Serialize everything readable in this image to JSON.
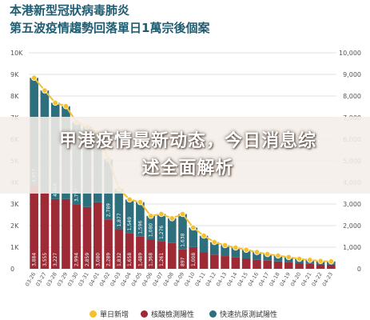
{
  "title_line1": "本港新型冠狀病毒肺炎",
  "title_line2": "第五波疫情趨勢回落單日1萬宗後個案",
  "overlay_text": "甲港疫情最新动态，今日消息综述全面解析",
  "colors": {
    "title": "#1f5d72",
    "total": "#f5c02f",
    "pcr": "#9e2a36",
    "rat": "#2d6f7d",
    "grid": "#d6d6d6"
  },
  "chart_data": {
    "type": "bar",
    "stacked": true,
    "left_axis_ticks": [
      "0",
      "1K",
      "2K",
      "3K",
      "4K",
      "5K",
      "6K",
      "7K",
      "8K",
      "9K",
      "10K"
    ],
    "right_axis_ticks": [
      "0",
      "1,000",
      "2,000",
      "3,000",
      "4,000",
      "5,000",
      "6,000",
      "7,000",
      "8,000",
      "9,000",
      "10,000"
    ],
    "ylim": [
      0,
      10000
    ],
    "categories": [
      "03-26",
      "03-27",
      "03-28",
      "03-29",
      "03-30",
      "03-31",
      "04-01",
      "04-02",
      "04-03",
      "04-04",
      "04-05",
      "04-06",
      "04-07",
      "04-08",
      "04-09",
      "04-10",
      "04-11",
      "04-12",
      "04-13",
      "04-14",
      "04-15",
      "04-16",
      "04-17",
      "04-18",
      "04-19",
      "04-20",
      "04-21",
      "04-22",
      "04-23"
    ],
    "series": [
      {
        "name": "核酸檢測陽性",
        "values": [
          3884,
          3555,
          3227,
          3227,
          2994,
          2859,
          3080,
          2289,
          1832,
          1658,
          1489,
          1368,
          1261,
          1197,
          897,
          1008,
          760,
          656,
          590,
          530,
          480,
          420,
          380,
          340,
          300,
          260,
          230,
          200,
          190
        ],
        "labels": [
          "3,884",
          "3,555",
          "3,227",
          "",
          "2,994",
          "2,859",
          "3,080",
          "2,289",
          "1,832",
          "1,658",
          "1,489",
          "1,368",
          "1,261",
          "",
          "897",
          "1,008",
          "",
          "",
          "",
          "",
          "",
          "",
          "",
          "",
          "",
          "",
          "",
          "",
          ""
        ]
      },
      {
        "name": "快速抗原測試陽性",
        "values": [
          4957,
          4700,
          4458,
          4300,
          3797,
          3720,
          3200,
          2789,
          1877,
          1549,
          1596,
          1080,
          1276,
          1140,
          1638,
          900,
          770,
          580,
          500,
          450,
          400,
          350,
          300,
          270,
          240,
          200,
          180,
          160,
          150
        ],
        "labels": [
          "4,957",
          "",
          "4,458",
          "",
          "3,797",
          "",
          "",
          "2,789",
          "1,877",
          "1,549",
          "1,596",
          "1,080",
          "1,276",
          "",
          "1,638",
          "",
          "",
          "",
          "",
          "",
          "",
          "",
          "",
          "",
          "",
          "",
          "",
          "",
          ""
        ]
      },
      {
        "name": "單日新增",
        "values": [
          8841,
          8255,
          7685,
          7527,
          6791,
          6579,
          6280,
          5078,
          3709,
          3207,
          3085,
          2448,
          2537,
          2337,
          2535,
          1908,
          1530,
          1236,
          1090,
          980,
          880,
          770,
          680,
          610,
          540,
          460,
          410,
          360,
          340
        ]
      }
    ]
  },
  "legend": {
    "total": "單日新增",
    "pcr": "核酸檢測陽性",
    "rat": "快速抗原測試陽性"
  }
}
